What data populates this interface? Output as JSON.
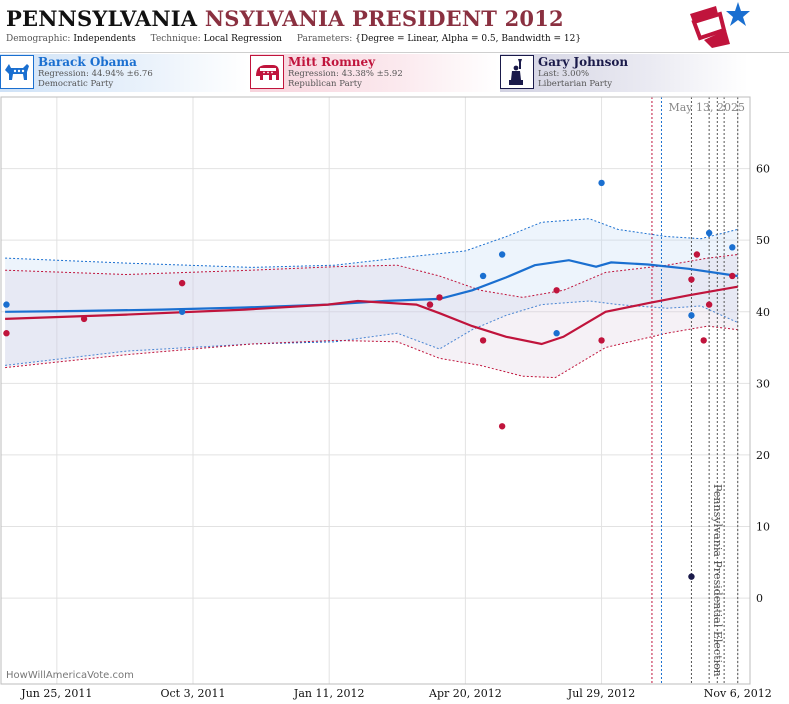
{
  "header": {
    "title_state": "PENNSYLVANIA",
    "title_rest": "NSYLVANIA PRESIDENT 2012",
    "meta": [
      {
        "key": "Demographic:",
        "value": "Independents"
      },
      {
        "key": "Technique:",
        "value": "Local Regression"
      },
      {
        "key": "Parameters:",
        "value": "{Degree = Linear, Alpha = 0.5, Bandwidth = 12}"
      }
    ],
    "logo_icon": "star-flag-logo-icon"
  },
  "candidates": [
    {
      "name": "Barack Obama",
      "stat": "Regression: 44.94% ±6.76",
      "party": "Democratic Party",
      "color": "#1a6fd0",
      "icon": "donkey-icon"
    },
    {
      "name": "Mitt Romney",
      "stat": "Regression: 43.38% ±5.92",
      "party": "Republican Party",
      "color": "#c0143c",
      "icon": "elephant-icon"
    },
    {
      "name": "Gary Johnson",
      "stat": "Last: 3.00%",
      "party": "Libertarian Party",
      "color": "#1a1a4a",
      "icon": "statue-of-liberty-icon"
    }
  ],
  "watermark": "HowWillAmericaVote.com",
  "date_stamp": "May 13, 2025",
  "election_label": "Pennsylvania Presidential Election",
  "chart_data": {
    "type": "line",
    "x_start": "2011-05-15",
    "x_end": "2012-11-15",
    "ylim": [
      -12,
      70
    ],
    "yticks": [
      0,
      10,
      20,
      30,
      40,
      50,
      60
    ],
    "grid": true,
    "x_tick_labels": [
      {
        "date": "2011-06-25",
        "label": "Jun 25, 2011"
      },
      {
        "date": "2011-10-03",
        "label": "Oct 3, 2011"
      },
      {
        "date": "2012-01-11",
        "label": "Jan 11, 2012"
      },
      {
        "date": "2012-04-20",
        "label": "Apr 20, 2012"
      },
      {
        "date": "2012-07-29",
        "label": "Jul 29, 2012"
      },
      {
        "date": "2012-11-06",
        "label": "Nov 6, 2012"
      }
    ],
    "event_lines": [
      {
        "date": "2012-09-04",
        "color": "#c0143c"
      },
      {
        "date": "2012-09-11",
        "color": "#1a6fd0"
      },
      {
        "date": "2012-10-03",
        "color": "#555555"
      },
      {
        "date": "2012-10-16",
        "color": "#555555"
      },
      {
        "date": "2012-10-22",
        "color": "#555555"
      },
      {
        "date": "2012-10-27",
        "color": "#555555"
      },
      {
        "date": "2012-11-06",
        "color": "#555555"
      }
    ],
    "series": [
      {
        "name": "Barack Obama",
        "color": "#1a6fd0",
        "band_fill": "rgba(190,215,245,0.28)",
        "trend": [
          [
            "2011-05-18",
            40
          ],
          [
            "2011-07-10",
            40.1
          ],
          [
            "2011-09-10",
            40.3
          ],
          [
            "2011-11-10",
            40.6
          ],
          [
            "2012-01-10",
            41.0
          ],
          [
            "2012-02-20",
            41.5
          ],
          [
            "2012-04-01",
            41.8
          ],
          [
            "2012-04-25",
            43.0
          ],
          [
            "2012-05-20",
            44.8
          ],
          [
            "2012-06-10",
            46.5
          ],
          [
            "2012-07-05",
            47.2
          ],
          [
            "2012-07-25",
            46.3
          ],
          [
            "2012-08-05",
            46.9
          ],
          [
            "2012-09-01",
            46.6
          ],
          [
            "2012-10-01",
            46.0
          ],
          [
            "2012-11-06",
            45.0
          ]
        ],
        "upper": [
          [
            "2011-05-18",
            47.5
          ],
          [
            "2011-08-15",
            46.8
          ],
          [
            "2011-11-15",
            46.2
          ],
          [
            "2012-01-15",
            46.5
          ],
          [
            "2012-03-01",
            47.5
          ],
          [
            "2012-04-20",
            48.5
          ],
          [
            "2012-05-20",
            50.5
          ],
          [
            "2012-06-15",
            52.5
          ],
          [
            "2012-07-20",
            53.0
          ],
          [
            "2012-08-10",
            51.5
          ],
          [
            "2012-09-15",
            50.5
          ],
          [
            "2012-10-10",
            50.2
          ],
          [
            "2012-11-06",
            51.5
          ]
        ],
        "lower": [
          [
            "2011-05-18",
            32.5
          ],
          [
            "2011-08-15",
            34.5
          ],
          [
            "2011-11-15",
            35.5
          ],
          [
            "2012-01-15",
            35.8
          ],
          [
            "2012-03-01",
            37.0
          ],
          [
            "2012-04-01",
            34.8
          ],
          [
            "2012-04-25",
            37.5
          ],
          [
            "2012-05-20",
            39.5
          ],
          [
            "2012-06-15",
            41.0
          ],
          [
            "2012-07-20",
            41.5
          ],
          [
            "2012-08-10",
            41.0
          ],
          [
            "2012-09-15",
            40.5
          ],
          [
            "2012-10-10",
            40.8
          ],
          [
            "2012-11-06",
            38.5
          ]
        ],
        "points": [
          [
            "2011-05-19",
            41
          ],
          [
            "2011-09-25",
            40
          ],
          [
            "2012-03-25",
            41
          ],
          [
            "2012-05-03",
            45
          ],
          [
            "2012-05-17",
            48
          ],
          [
            "2012-06-26",
            37
          ],
          [
            "2012-07-29",
            58
          ],
          [
            "2012-10-03",
            39.5
          ],
          [
            "2012-10-16",
            51
          ],
          [
            "2012-11-02",
            49
          ]
        ]
      },
      {
        "name": "Mitt Romney",
        "color": "#c0143c",
        "band_fill": "rgba(215,200,220,0.25)",
        "trend": [
          [
            "2011-05-18",
            39
          ],
          [
            "2011-08-15",
            39.6
          ],
          [
            "2011-11-10",
            40.3
          ],
          [
            "2012-01-10",
            41.0
          ],
          [
            "2012-02-01",
            41.5
          ],
          [
            "2012-03-15",
            41.0
          ],
          [
            "2012-04-01",
            39.8
          ],
          [
            "2012-04-25",
            38.0
          ],
          [
            "2012-05-20",
            36.5
          ],
          [
            "2012-06-15",
            35.5
          ],
          [
            "2012-07-01",
            36.5
          ],
          [
            "2012-08-01",
            40.0
          ],
          [
            "2012-09-01",
            41.2
          ],
          [
            "2012-10-01",
            42.3
          ],
          [
            "2012-11-06",
            43.5
          ]
        ],
        "upper": [
          [
            "2011-05-18",
            45.8
          ],
          [
            "2011-08-15",
            45.2
          ],
          [
            "2011-11-15",
            45.8
          ],
          [
            "2012-01-15",
            46.3
          ],
          [
            "2012-03-01",
            46.5
          ],
          [
            "2012-04-01",
            45.0
          ],
          [
            "2012-05-01",
            43.0
          ],
          [
            "2012-06-01",
            42.0
          ],
          [
            "2012-07-01",
            43.0
          ],
          [
            "2012-08-01",
            45.5
          ],
          [
            "2012-09-15",
            46.5
          ],
          [
            "2012-10-15",
            47.5
          ],
          [
            "2012-11-06",
            48.0
          ]
        ],
        "lower": [
          [
            "2011-05-18",
            32.2
          ],
          [
            "2011-08-15",
            34.0
          ],
          [
            "2011-11-15",
            35.5
          ],
          [
            "2012-01-15",
            36.0
          ],
          [
            "2012-03-01",
            35.8
          ],
          [
            "2012-04-01",
            33.5
          ],
          [
            "2012-05-01",
            32.5
          ],
          [
            "2012-06-01",
            31.0
          ],
          [
            "2012-06-25",
            30.8
          ],
          [
            "2012-08-01",
            35.0
          ],
          [
            "2012-09-15",
            37.0
          ],
          [
            "2012-10-15",
            38.0
          ],
          [
            "2012-11-06",
            37.5
          ]
        ],
        "points": [
          [
            "2011-05-19",
            37
          ],
          [
            "2011-07-15",
            39
          ],
          [
            "2011-09-25",
            44
          ],
          [
            "2012-03-25",
            41
          ],
          [
            "2012-04-01",
            42
          ],
          [
            "2012-05-03",
            36
          ],
          [
            "2012-05-17",
            24
          ],
          [
            "2012-06-26",
            43
          ],
          [
            "2012-07-29",
            36
          ],
          [
            "2012-10-03",
            44.5
          ],
          [
            "2012-10-07",
            48
          ],
          [
            "2012-10-16",
            41
          ],
          [
            "2012-10-12",
            36
          ],
          [
            "2012-11-02",
            45
          ]
        ]
      },
      {
        "name": "Gary Johnson",
        "color": "#1a1a4a",
        "points": [
          [
            "2012-10-03",
            3
          ]
        ]
      }
    ]
  }
}
